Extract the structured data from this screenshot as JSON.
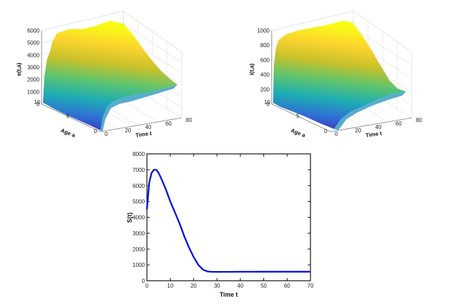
{
  "chart_data": [
    {
      "type": "surface",
      "zlabel": "e(t,a)",
      "xlabel": "Time t",
      "ylabel": "Age a",
      "zticks": [
        "0",
        "1000",
        "2000",
        "3000",
        "4000",
        "5000",
        "6000"
      ],
      "tticks": [
        "0",
        "20",
        "40",
        "60",
        "80"
      ],
      "aticks": [
        "0",
        "5",
        "10"
      ],
      "zlim": [
        0,
        6000
      ],
      "tlim": [
        0,
        80
      ],
      "alim": [
        0,
        10
      ],
      "grid": true,
      "colormap": [
        "#3e26a8",
        "#2f6ed6",
        "#1eaeb3",
        "#5fc46d",
        "#c9c12a",
        "#fbd42e",
        "#f9fb15"
      ]
    },
    {
      "type": "surface",
      "zlabel": "i(t,a)",
      "xlabel": "Time t",
      "ylabel": "Age a",
      "zticks": [
        "0",
        "200",
        "400",
        "600",
        "800",
        "1000"
      ],
      "tticks": [
        "0",
        "20",
        "40",
        "60",
        "80"
      ],
      "aticks": [
        "0",
        "5",
        "10"
      ],
      "zlim": [
        0,
        1000
      ],
      "tlim": [
        0,
        80
      ],
      "alim": [
        0,
        10
      ],
      "grid": true,
      "colormap": [
        "#3e26a8",
        "#2f6ed6",
        "#1eaeb3",
        "#5fc46d",
        "#c9c12a",
        "#fbd42e",
        "#f9fb15"
      ]
    },
    {
      "type": "line",
      "xlabel": "Time t",
      "ylabel": "S(t)",
      "xlim": [
        0,
        70
      ],
      "ylim": [
        0,
        8000
      ],
      "xticks": [
        "0",
        "10",
        "20",
        "30",
        "40",
        "50",
        "60",
        "70"
      ],
      "yticks": [
        "0",
        "1000",
        "2000",
        "3000",
        "4000",
        "5000",
        "6000",
        "7000",
        "8000"
      ],
      "line_color": "#0a18d6",
      "series": [
        {
          "x": [
            0,
            1,
            2,
            3,
            4,
            5,
            6,
            8,
            10,
            12,
            14,
            16,
            18,
            20,
            22,
            24,
            26,
            28,
            30,
            35,
            40,
            50,
            60,
            70
          ],
          "y": [
            4500,
            6200,
            6800,
            7000,
            7000,
            6800,
            6500,
            5800,
            5000,
            4300,
            3600,
            2800,
            2100,
            1500,
            1000,
            700,
            580,
            560,
            560,
            560,
            565,
            570,
            570,
            570
          ]
        }
      ]
    }
  ]
}
